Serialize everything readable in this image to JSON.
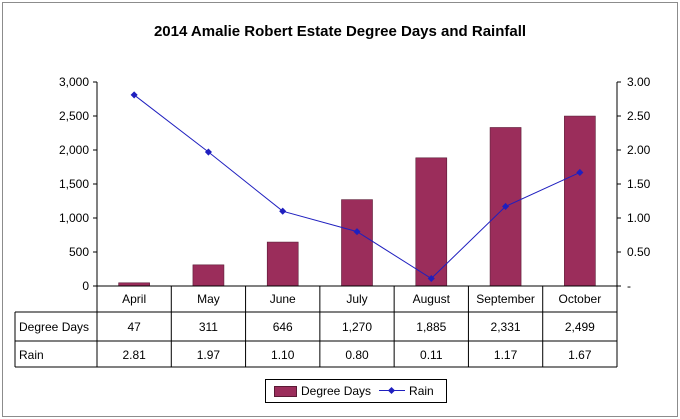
{
  "chart_data": {
    "type": "bar+line",
    "title": "2014 Amalie Robert Estate Degree Days and Rainfall",
    "categories": [
      "April",
      "May",
      "June",
      "July",
      "August",
      "September",
      "October"
    ],
    "series": [
      {
        "name": "Degree Days",
        "type": "bar",
        "axis": "left",
        "values": [
          47,
          311,
          646,
          1270,
          1885,
          2331,
          2499
        ],
        "display": [
          "47",
          "311",
          "646",
          "1,270",
          "1,885",
          "2,331",
          "2,499"
        ],
        "color": "#9b2d5b"
      },
      {
        "name": "Rain",
        "type": "line",
        "axis": "right",
        "values": [
          2.81,
          1.97,
          1.1,
          0.8,
          0.11,
          1.17,
          1.67
        ],
        "display": [
          "2.81",
          "1.97",
          "1.10",
          "0.80",
          "0.11",
          "1.17",
          "1.67"
        ],
        "color": "#1f1fbf"
      }
    ],
    "y_left": {
      "ylim": [
        0,
        3000
      ],
      "ticks": [
        0,
        500,
        1000,
        1500,
        2000,
        2500,
        3000
      ],
      "tick_labels": [
        "0",
        "500",
        "1,000",
        "1,500",
        "2,000",
        "2,500",
        "3,000"
      ]
    },
    "y_right": {
      "ylim": [
        0,
        3
      ],
      "ticks": [
        0,
        0.5,
        1,
        1.5,
        2,
        2.5,
        3
      ],
      "tick_labels": [
        "-",
        "0.50",
        "1.00",
        "1.50",
        "2.00",
        "2.50",
        "3.00"
      ]
    },
    "grid": false,
    "legend": "bottom",
    "data_table": true
  },
  "legend": {
    "degree_days": "Degree Days",
    "rain": "Rain"
  }
}
